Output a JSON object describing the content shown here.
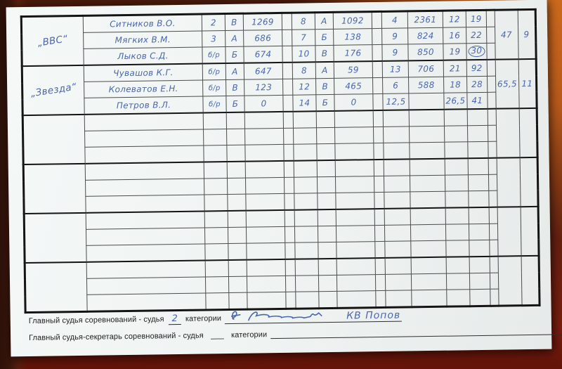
{
  "table": {
    "groups": [
      {
        "team": "„ВВС“",
        "total": "47",
        "place": "9",
        "rows": [
          {
            "name": "Ситников В.О.",
            "values": [
              "2",
              "В",
              "1269",
              "8",
              "А",
              "1092",
              "4",
              "2361",
              "12",
              "19"
            ],
            "circled": -1
          },
          {
            "name": "Мягких В.М.",
            "values": [
              "3",
              "А",
              "686",
              "7",
              "Б",
              "138",
              "9",
              "824",
              "16",
              "22"
            ],
            "circled": -1
          },
          {
            "name": "Лыков С.Д.",
            "values": [
              "б/р",
              "Б",
              "674",
              "10",
              "В",
              "176",
              "9",
              "850",
              "19",
              "30"
            ],
            "circled": 9
          }
        ]
      },
      {
        "team": "„Звезда“",
        "total": "65,5",
        "place": "11",
        "rows": [
          {
            "name": "Чувашов К.Г.",
            "values": [
              "б/р",
              "А",
              "647",
              "8",
              "А",
              "59",
              "13",
              "706",
              "21",
              "92"
            ],
            "circled": -1
          },
          {
            "name": "Колеватов Е.Н.",
            "values": [
              "б/р",
              "В",
              "123",
              "12",
              "В",
              "465",
              "6",
              "588",
              "18",
              "28"
            ],
            "circled": -1
          },
          {
            "name": "Петров В.Л.",
            "values": [
              "б/р",
              "Б",
              "0",
              "14",
              "Б",
              "0",
              "12,5",
              "",
              "26,5",
              "41"
            ],
            "circled": -1
          }
        ]
      },
      {
        "team": "",
        "total": "",
        "place": "",
        "rows": [
          {
            "name": "",
            "values": [
              "",
              "",
              "",
              "",
              "",
              "",
              "",
              "",
              "",
              ""
            ],
            "circled": -1
          },
          {
            "name": "",
            "values": [
              "",
              "",
              "",
              "",
              "",
              "",
              "",
              "",
              "",
              ""
            ],
            "circled": -1
          },
          {
            "name": "",
            "values": [
              "",
              "",
              "",
              "",
              "",
              "",
              "",
              "",
              "",
              ""
            ],
            "circled": -1
          }
        ]
      },
      {
        "team": "",
        "total": "",
        "place": "",
        "rows": [
          {
            "name": "",
            "values": [
              "",
              "",
              "",
              "",
              "",
              "",
              "",
              "",
              "",
              ""
            ],
            "circled": -1
          },
          {
            "name": "",
            "values": [
              "",
              "",
              "",
              "",
              "",
              "",
              "",
              "",
              "",
              ""
            ],
            "circled": -1
          },
          {
            "name": "",
            "values": [
              "",
              "",
              "",
              "",
              "",
              "",
              "",
              "",
              "",
              ""
            ],
            "circled": -1
          }
        ]
      },
      {
        "team": "",
        "total": "",
        "place": "",
        "rows": [
          {
            "name": "",
            "values": [
              "",
              "",
              "",
              "",
              "",
              "",
              "",
              "",
              "",
              ""
            ],
            "circled": -1
          },
          {
            "name": "",
            "values": [
              "",
              "",
              "",
              "",
              "",
              "",
              "",
              "",
              "",
              ""
            ],
            "circled": -1
          },
          {
            "name": "",
            "values": [
              "",
              "",
              "",
              "",
              "",
              "",
              "",
              "",
              "",
              ""
            ],
            "circled": -1
          }
        ]
      },
      {
        "team": "",
        "total": "",
        "place": "",
        "rows": [
          {
            "name": "",
            "values": [
              "",
              "",
              "",
              "",
              "",
              "",
              "",
              "",
              "",
              ""
            ],
            "circled": -1
          },
          {
            "name": "",
            "values": [
              "",
              "",
              "",
              "",
              "",
              "",
              "",
              "",
              "",
              ""
            ],
            "circled": -1
          },
          {
            "name": "",
            "values": [
              "",
              "",
              "",
              "",
              "",
              "",
              "",
              "",
              "",
              ""
            ],
            "circled": -1
          }
        ]
      }
    ]
  },
  "footer": {
    "judge_line": {
      "prefix": "Главный судья соревнований  -  судья",
      "category_value": "2",
      "suffix": "категории"
    },
    "signature_name": "КВ Попов",
    "secretary_line": {
      "prefix": "Главный  судья-секретарь соревнований  -  судья",
      "category_value": "___",
      "suffix": "категории"
    }
  },
  "colors": {
    "ink_blue": "#4a66ad",
    "grid_black": "#141414",
    "paper": "#eff3f2",
    "wood_dark": "#4a1b0d",
    "wood_orange": "#b85a1b"
  }
}
